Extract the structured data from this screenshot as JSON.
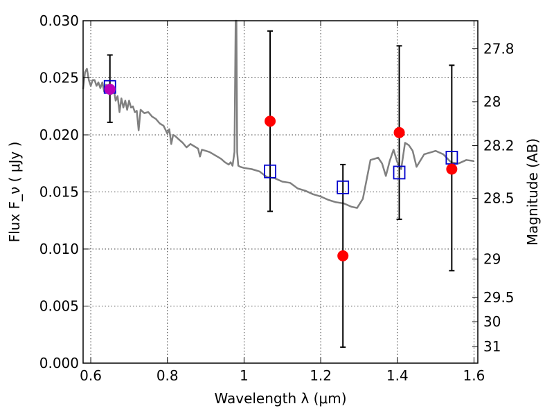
{
  "chart_data": {
    "type": "scatter",
    "title": "",
    "xlabel": "Wavelength  λ (μm)",
    "ylabel_left": "Flux  F_ν  ( μJy )",
    "ylabel_right": "Magnitude (AB)",
    "xlim": [
      0.58,
      1.61
    ],
    "ylim": [
      0.0,
      0.03
    ],
    "x_ticks": [
      0.6,
      0.8,
      1.0,
      1.2,
      1.4,
      1.6
    ],
    "x_tick_labels": [
      "0.6",
      "0.8",
      "1",
      "1.2",
      "1.4",
      "1.6"
    ],
    "y_ticks": [
      0.0,
      0.005,
      0.01,
      0.015,
      0.02,
      0.025,
      0.03
    ],
    "y_tick_labels": [
      "0.000",
      "0.005",
      "0.010",
      "0.015",
      "0.020",
      "0.025",
      "0.030"
    ],
    "right_ticks": [
      {
        "label": "27.8",
        "mag": 27.8
      },
      {
        "label": "28",
        "mag": 28.0
      },
      {
        "label": "28.2",
        "mag": 28.2
      },
      {
        "label": "28.5",
        "mag": 28.5
      },
      {
        "label": "29",
        "mag": 29.0
      },
      {
        "label": "29.5",
        "mag": 29.5
      },
      {
        "label": "30",
        "mag": 30.0
      },
      {
        "label": "31",
        "mag": 31.0
      }
    ],
    "grid": true,
    "colors": {
      "spectrum": "#808080",
      "observed": "#ff0000",
      "model": "#0000cc",
      "errorbar": "#000000",
      "overlap": "#bb00bb"
    },
    "spectrum": {
      "name": "",
      "x": [
        0.58,
        0.585,
        0.59,
        0.595,
        0.6,
        0.605,
        0.61,
        0.615,
        0.62,
        0.625,
        0.63,
        0.635,
        0.64,
        0.645,
        0.65,
        0.655,
        0.66,
        0.665,
        0.67,
        0.675,
        0.68,
        0.685,
        0.69,
        0.695,
        0.7,
        0.705,
        0.71,
        0.715,
        0.72,
        0.725,
        0.73,
        0.74,
        0.75,
        0.76,
        0.77,
        0.78,
        0.79,
        0.8,
        0.805,
        0.81,
        0.815,
        0.82,
        0.83,
        0.84,
        0.85,
        0.86,
        0.87,
        0.88,
        0.885,
        0.89,
        0.9,
        0.91,
        0.92,
        0.93,
        0.94,
        0.95,
        0.96,
        0.965,
        0.97,
        0.975,
        0.978,
        0.98,
        0.982,
        0.985,
        0.99,
        1.0,
        1.02,
        1.04,
        1.06,
        1.08,
        1.1,
        1.12,
        1.14,
        1.16,
        1.18,
        1.2,
        1.22,
        1.24,
        1.26,
        1.28,
        1.295,
        1.31,
        1.33,
        1.35,
        1.36,
        1.37,
        1.38,
        1.39,
        1.4,
        1.41,
        1.42,
        1.43,
        1.44,
        1.45,
        1.47,
        1.49,
        1.5,
        1.52,
        1.54,
        1.56,
        1.58,
        1.6
      ],
      "y": [
        0.024,
        0.0255,
        0.0258,
        0.0248,
        0.0243,
        0.0248,
        0.0248,
        0.0243,
        0.0246,
        0.0241,
        0.0246,
        0.0238,
        0.0244,
        0.0238,
        0.0243,
        0.0236,
        0.024,
        0.023,
        0.0234,
        0.022,
        0.0232,
        0.0224,
        0.023,
        0.0222,
        0.023,
        0.0224,
        0.0225,
        0.022,
        0.0221,
        0.0204,
        0.0222,
        0.0219,
        0.022,
        0.0216,
        0.0214,
        0.021,
        0.0208,
        0.0201,
        0.0205,
        0.0192,
        0.02,
        0.0199,
        0.0196,
        0.0193,
        0.0189,
        0.0192,
        0.019,
        0.0188,
        0.0181,
        0.0187,
        0.0186,
        0.0185,
        0.0183,
        0.0181,
        0.0179,
        0.0176,
        0.0174,
        0.0176,
        0.0173,
        0.0185,
        0.03,
        0.03,
        0.0185,
        0.0173,
        0.0172,
        0.0171,
        0.017,
        0.0168,
        0.0163,
        0.0162,
        0.0159,
        0.0158,
        0.0153,
        0.0151,
        0.0148,
        0.0146,
        0.0143,
        0.0141,
        0.014,
        0.0137,
        0.0136,
        0.0144,
        0.0178,
        0.018,
        0.0175,
        0.0164,
        0.0177,
        0.0187,
        0.0176,
        0.017,
        0.0193,
        0.0191,
        0.0186,
        0.0172,
        0.0183,
        0.0185,
        0.0186,
        0.0183,
        0.0176,
        0.0175,
        0.0178,
        0.0177
      ]
    },
    "observed": {
      "name": "",
      "points": [
        {
          "x": 0.65,
          "y": 0.024,
          "yerr_low": 0.0211,
          "yerr_high": 0.027
        },
        {
          "x": 1.068,
          "y": 0.0212,
          "yerr_low": 0.0133,
          "yerr_high": 0.0291
        },
        {
          "x": 1.258,
          "y": 0.0094,
          "yerr_low": 0.0014,
          "yerr_high": 0.0174
        },
        {
          "x": 1.405,
          "y": 0.0202,
          "yerr_low": 0.0126,
          "yerr_high": 0.0278
        },
        {
          "x": 1.542,
          "y": 0.017,
          "yerr_low": 0.0081,
          "yerr_high": 0.0261
        }
      ]
    },
    "model": {
      "name": "",
      "points": [
        {
          "x": 0.65,
          "y": 0.0242
        },
        {
          "x": 1.068,
          "y": 0.0168
        },
        {
          "x": 1.258,
          "y": 0.0154
        },
        {
          "x": 1.405,
          "y": 0.0167
        },
        {
          "x": 1.542,
          "y": 0.018
        }
      ]
    }
  }
}
